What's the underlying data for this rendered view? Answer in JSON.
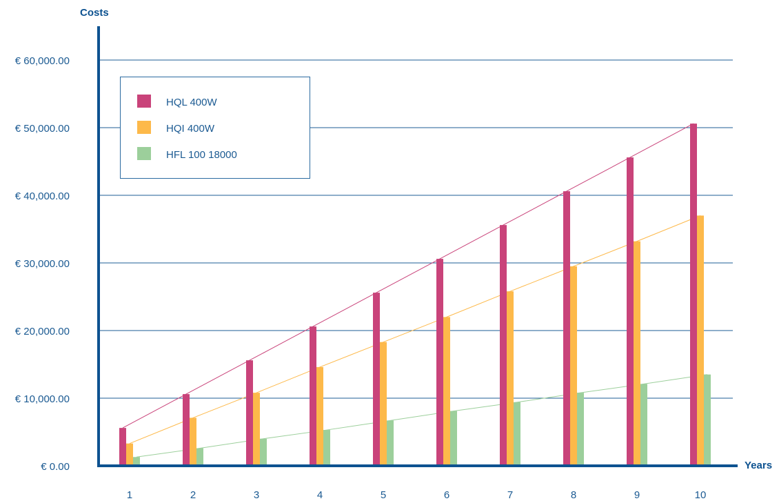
{
  "chart_data": {
    "type": "bar",
    "title": "",
    "ylabel": "Costs",
    "xlabel": "Years",
    "categories": [
      "1",
      "2",
      "3",
      "4",
      "5",
      "6",
      "7",
      "8",
      "9",
      "10"
    ],
    "ylim": [
      0,
      60000
    ],
    "yticks": [
      0,
      10000,
      20000,
      30000,
      40000,
      50000,
      60000
    ],
    "ytick_labels": [
      "€ 0.00",
      "€ 10,000.00",
      "€ 20,000.00",
      "€ 30,000.00",
      "€ 40,000.00",
      "€ 50,000.00",
      "€ 60,000.00"
    ],
    "grid": true,
    "legend_position": "top-left",
    "trend_lines": true,
    "series": [
      {
        "name": "HQL 400W",
        "color": "#c9437a",
        "values": [
          5600,
          10600,
          15600,
          20600,
          25600,
          30600,
          35600,
          40600,
          45600,
          50600
        ]
      },
      {
        "name": "HQI 400W",
        "color": "#fdb94a",
        "values": [
          3300,
          7100,
          10800,
          14600,
          18300,
          22000,
          25800,
          29500,
          33200,
          37000
        ]
      },
      {
        "name": "HFL 100 18000",
        "color": "#9ccf9b",
        "values": [
          1300,
          2600,
          4000,
          5300,
          6700,
          8100,
          9400,
          10800,
          12100,
          13500
        ]
      }
    ]
  },
  "colors": {
    "axis": "#0d5290",
    "grid": "#1d5c95",
    "text": "#1b5a92",
    "legend_border": "#2a6aa0"
  }
}
